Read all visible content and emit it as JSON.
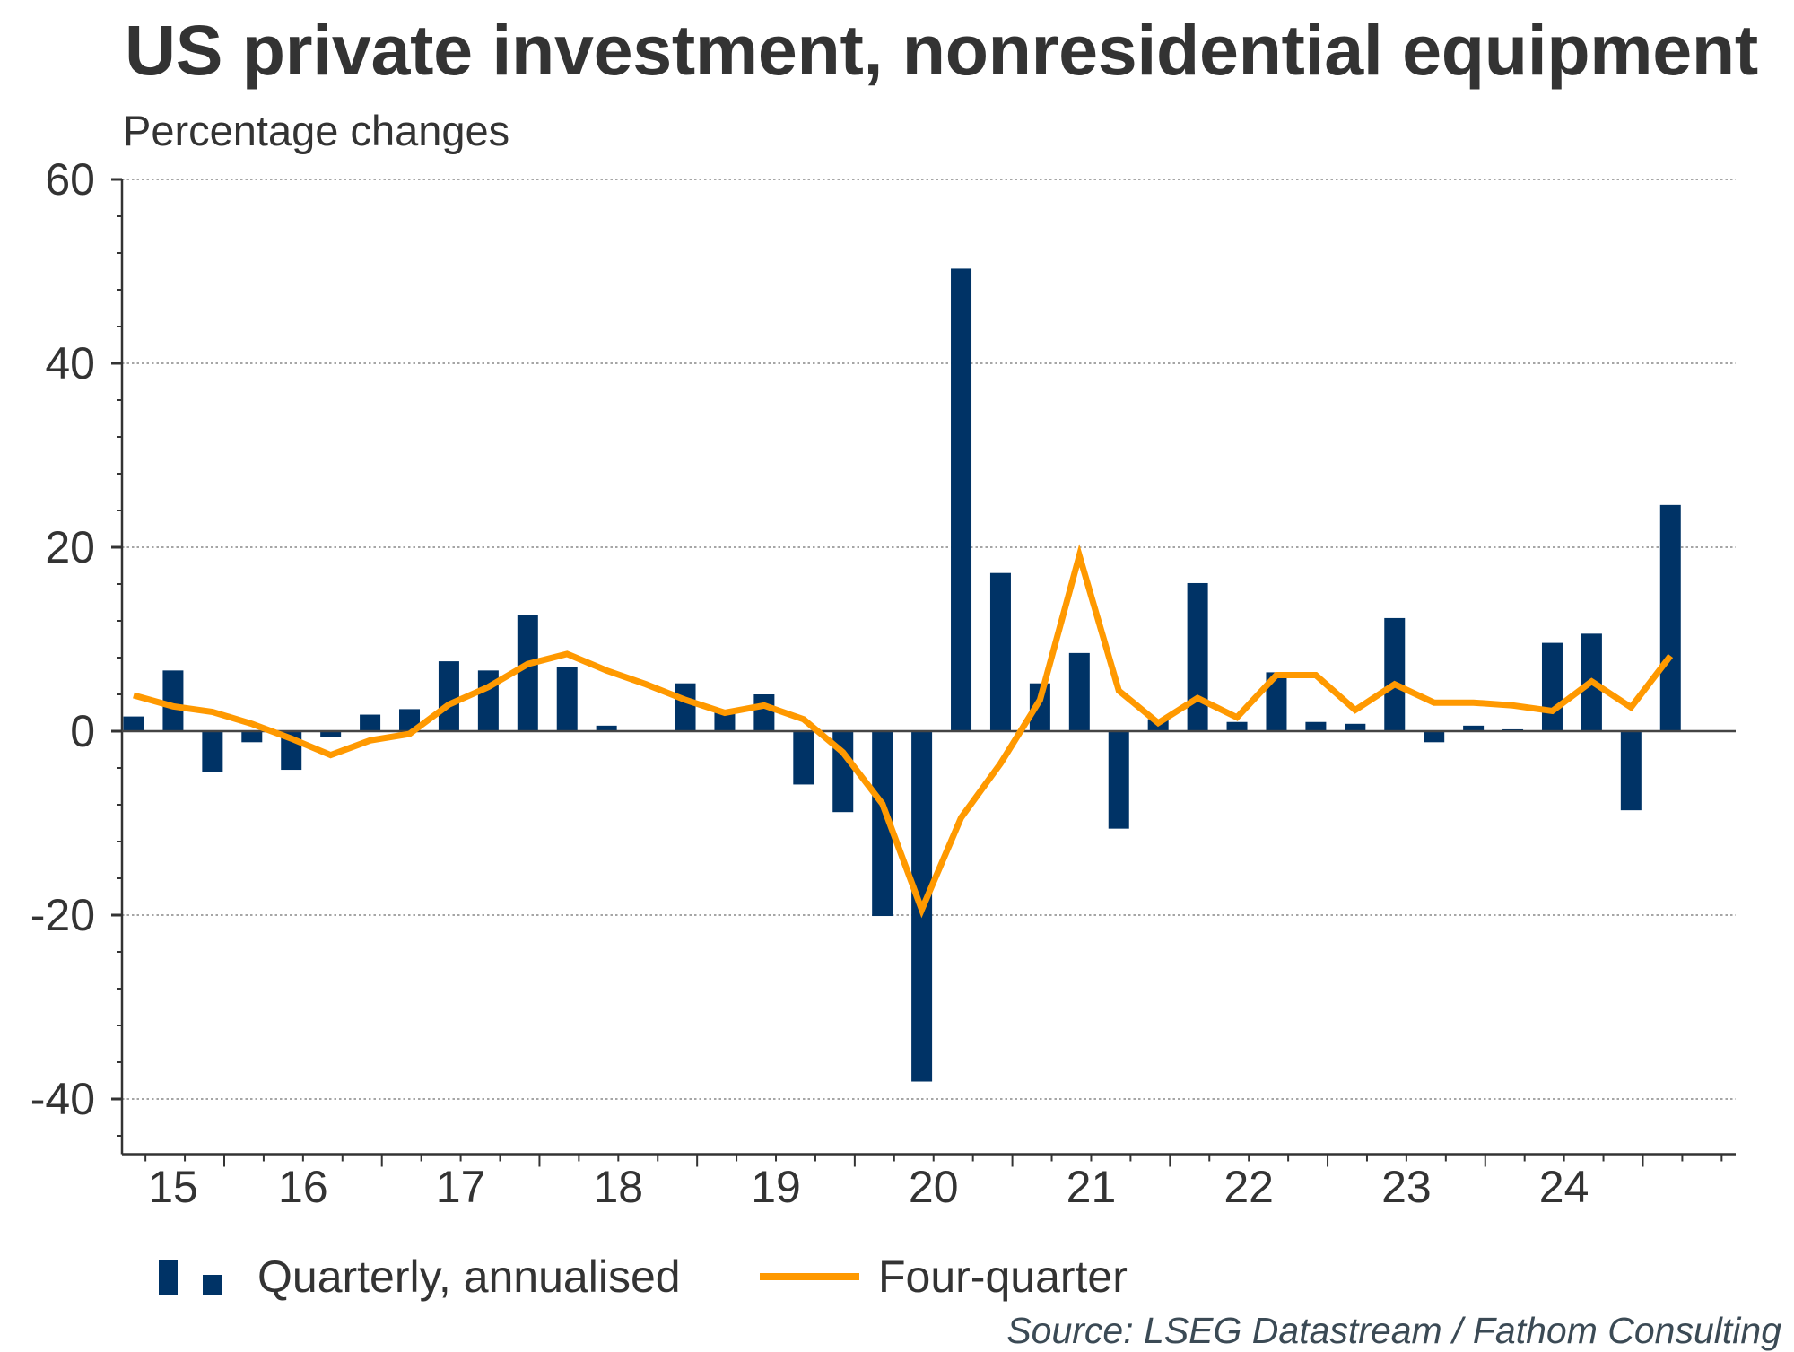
{
  "chart_data": {
    "type": "bar",
    "title": "US private investment, nonresidential equipment",
    "subtitle": "Percentage changes",
    "xlabel": "",
    "ylabel": "",
    "ylim": [
      -46,
      60
    ],
    "yticks": [
      60,
      40,
      20,
      0,
      -20,
      -40
    ],
    "ytick_labels": [
      "60",
      "40",
      "20",
      "0",
      "-20",
      "-40"
    ],
    "y_minor_tick_step": 4,
    "grid": "horizontal dotted at major y ticks",
    "x_tick_labels": [
      "15",
      "16",
      "17",
      "18",
      "19",
      "20",
      "21",
      "22",
      "23",
      "24"
    ],
    "categories": [
      "2015Q2",
      "2015Q3",
      "2015Q4",
      "2016Q1",
      "2016Q2",
      "2016Q3",
      "2016Q4",
      "2017Q1",
      "2017Q2",
      "2017Q3",
      "2017Q4",
      "2018Q1",
      "2018Q2",
      "2018Q3",
      "2018Q4",
      "2019Q1",
      "2019Q2",
      "2019Q3",
      "2019Q4",
      "2020Q1",
      "2020Q2",
      "2020Q3",
      "2020Q4",
      "2021Q1",
      "2021Q2",
      "2021Q3",
      "2021Q4",
      "2022Q1",
      "2022Q2",
      "2022Q3",
      "2022Q4",
      "2023Q1",
      "2023Q2",
      "2023Q3",
      "2023Q4",
      "2024Q1",
      "2024Q2",
      "2024Q3",
      "2024Q4",
      "2025Q1"
    ],
    "series": [
      {
        "name": "Quarterly, annualised",
        "type": "bar",
        "color": "#003366",
        "values": [
          1.6,
          6.6,
          -4.4,
          -1.2,
          -4.2,
          -0.6,
          1.8,
          2.4,
          7.6,
          6.6,
          12.6,
          7.0,
          0.6,
          0.0,
          5.2,
          2.0,
          4.0,
          -5.8,
          -8.8,
          -20.1,
          -38.1,
          50.3,
          17.2,
          5.2,
          8.5,
          -10.6,
          1.3,
          16.1,
          1.0,
          6.4,
          1.0,
          0.8,
          12.3,
          -1.2,
          0.6,
          0.2,
          9.6,
          10.6,
          -8.6,
          24.6
        ]
      },
      {
        "name": "Four-quarter",
        "type": "line",
        "color": "#ff9900",
        "values": [
          3.9,
          2.7,
          2.1,
          0.8,
          -0.8,
          -2.6,
          -1.0,
          -0.3,
          2.9,
          4.8,
          7.3,
          8.4,
          6.6,
          5.1,
          3.4,
          2.0,
          2.8,
          1.3,
          -2.3,
          -7.9,
          -19.4,
          -9.4,
          -3.5,
          3.4,
          19.1,
          4.4,
          0.9,
          3.6,
          1.5,
          6.1,
          6.1,
          2.3,
          5.1,
          3.1,
          3.1,
          2.8,
          2.2,
          5.4,
          2.6,
          8.2
        ]
      }
    ],
    "legend": {
      "placement": "bottom-left",
      "items": [
        {
          "label": "Quarterly, annualised",
          "symbol": "bar",
          "color": "#003366"
        },
        {
          "label": "Four-quarter",
          "symbol": "line",
          "color": "#ff9900"
        }
      ]
    },
    "source": "Source: LSEG Datastream / Fathom Consulting"
  }
}
